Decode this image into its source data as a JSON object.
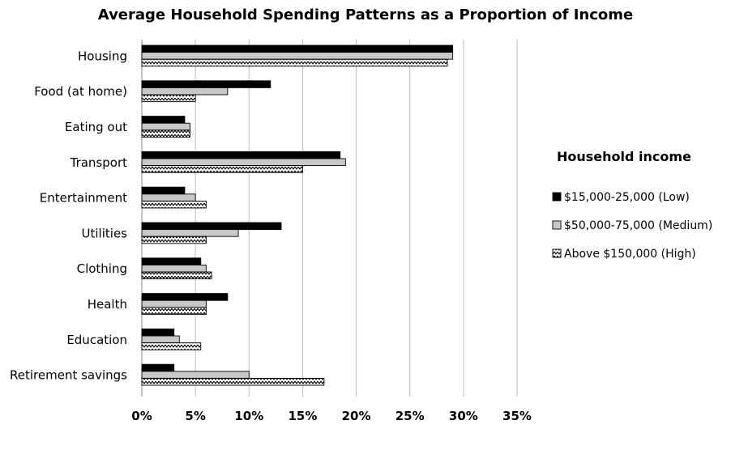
{
  "chart_data": {
    "type": "bar",
    "orientation": "horizontal",
    "title": "Average Household Spending Patterns as a Proportion of Income",
    "categories": [
      "Housing",
      "Food (at home)",
      "Eating out",
      "Transport",
      "Entertainment",
      "Utilities",
      "Clothing",
      "Health",
      "Education",
      "Retirement savings"
    ],
    "series": [
      {
        "name": "$15,000-25,000 (Low)",
        "fill": "#000000",
        "pattern": "solid",
        "values": [
          29,
          12,
          4,
          18.5,
          4,
          13,
          5.5,
          8,
          3,
          3
        ]
      },
      {
        "name": "$50,000-75,000 (Medium)",
        "fill": "#c8c8c8",
        "pattern": "solid",
        "values": [
          29,
          8,
          4.5,
          19,
          5,
          9,
          6,
          6,
          3.5,
          10
        ]
      },
      {
        "name": "Above $150,000 (High)",
        "fill": "#ffffff",
        "pattern": "zigzag",
        "values": [
          28.5,
          5,
          4.5,
          15,
          6,
          6,
          6.5,
          6,
          5.5,
          17
        ]
      }
    ],
    "x_ticks": [
      "0%",
      "5%",
      "10%",
      "15%",
      "20%",
      "25%",
      "30%",
      "35%"
    ],
    "xlim": [
      0,
      35
    ],
    "grid": true,
    "legend": {
      "title": "Household income",
      "placement": "right"
    }
  }
}
